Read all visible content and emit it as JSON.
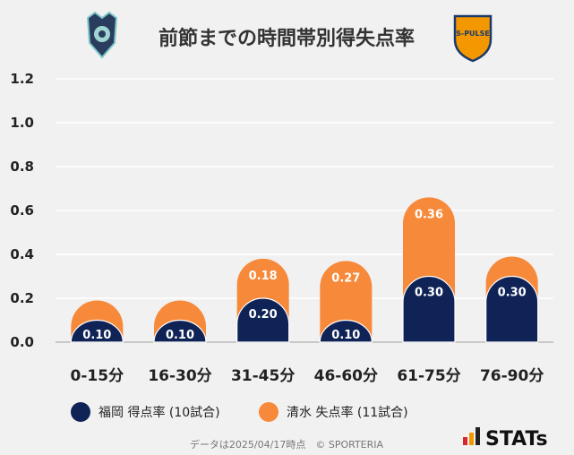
{
  "header": {
    "title": "前節までの時間帯別得失点率",
    "home_logo_icon": "fukuoka-crest-icon",
    "away_logo_icon": "shimizu-spulse-crest-icon",
    "away_logo_text": "S-PULSE"
  },
  "chart_data": {
    "type": "bar",
    "title": "前節までの時間帯別得失点率",
    "categories": [
      "0-15分",
      "16-30分",
      "31-45分",
      "46-60分",
      "61-75分",
      "76-90分"
    ],
    "ylim": [
      0,
      1.2
    ],
    "yticks": [
      "0.0",
      "0.2",
      "0.4",
      "0.6",
      "0.8",
      "1.0",
      "1.2"
    ],
    "grid": true,
    "stacked": true,
    "legend_position": "bottom",
    "series": [
      {
        "name": "福岡 得点率 (10試合)",
        "color": "#0f2356",
        "values": [
          0.1,
          0.1,
          0.2,
          0.1,
          0.3,
          0.3
        ],
        "labels": [
          "0.10",
          "0.10",
          "0.20",
          "0.10",
          "0.30",
          "0.30"
        ]
      },
      {
        "name": "清水 失点率 (11試合)",
        "color": "#f7893a",
        "values": [
          0.09,
          0.09,
          0.18,
          0.27,
          0.36,
          0.09
        ],
        "labels": [
          "",
          "",
          "0.18",
          "0.27",
          "0.36",
          ""
        ]
      }
    ]
  },
  "footer": {
    "note": "データは2025/04/17時点　© SPORTERIA",
    "brand": "STATs",
    "brand_icon": "stats-bars-icon"
  }
}
